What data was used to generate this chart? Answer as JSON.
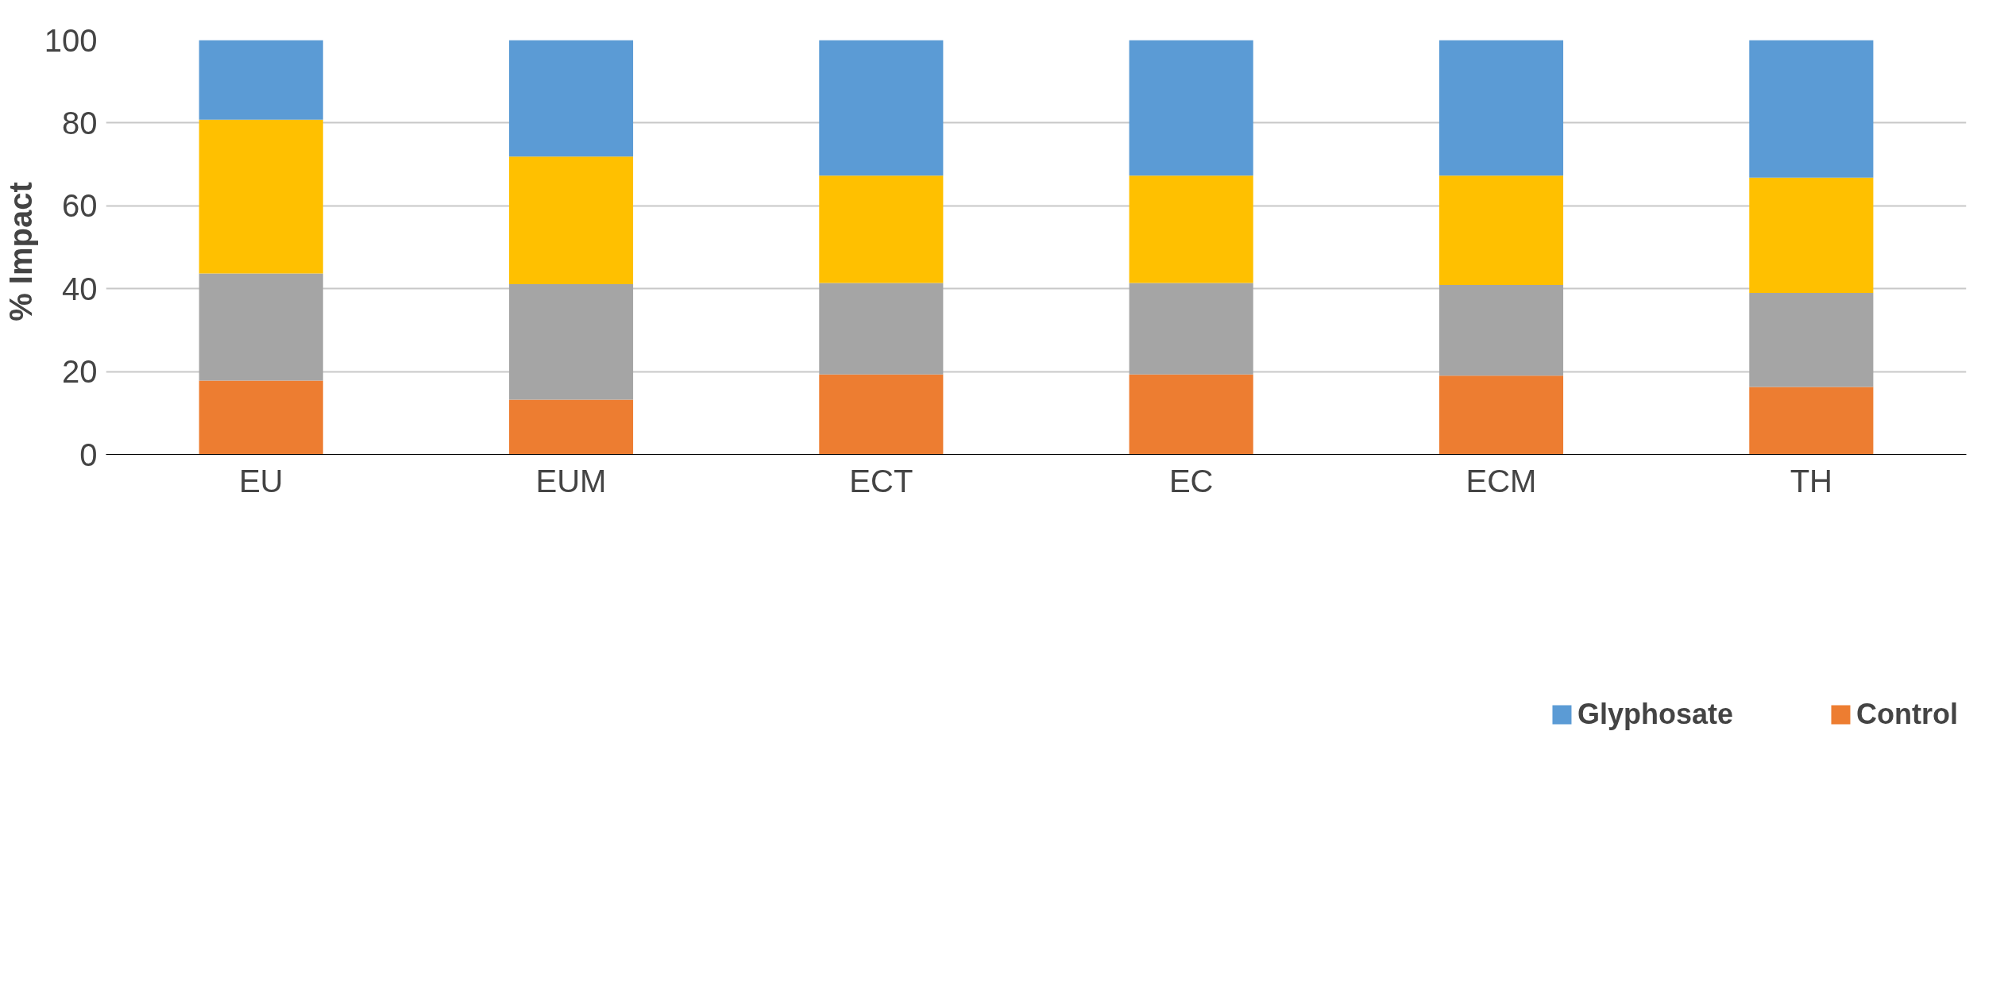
{
  "chart_data": {
    "type": "bar",
    "stacked": true,
    "ylabel": "%  Impact",
    "categories": [
      "EU",
      "EUM",
      "ECT",
      "EC",
      "ECM",
      "TH"
    ],
    "series": [
      {
        "name": "Control",
        "color": "#ed7d31",
        "values": [
          17.8,
          13.2,
          19.3,
          19.3,
          19.0,
          16.3
        ]
      },
      {
        "color": "#a5a5a5",
        "values": [
          25.9,
          27.9,
          22.1,
          22.1,
          21.9,
          22.7
        ]
      },
      {
        "color": "#ffc000",
        "values": [
          37.1,
          30.8,
          25.9,
          25.9,
          26.4,
          27.8
        ]
      },
      {
        "name": "Glyphosate",
        "color": "#5b9bd5",
        "values": [
          19.2,
          28.1,
          32.7,
          32.7,
          32.7,
          33.2
        ]
      }
    ],
    "ylim": [
      0,
      100
    ],
    "yticks": [
      0,
      20,
      40,
      60,
      80,
      100
    ],
    "grid": "y",
    "legend": "bottom"
  }
}
